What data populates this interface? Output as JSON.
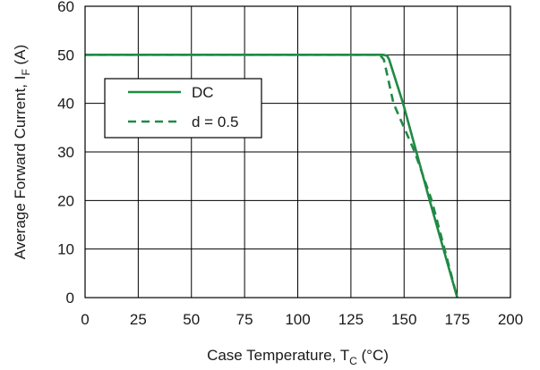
{
  "chart_data": {
    "type": "line",
    "title": "",
    "xlabel": {
      "main": "Case Temperature, T",
      "sub": "C",
      "unit": " (°C)"
    },
    "ylabel": {
      "main": "Average Forward Current, I",
      "sub": "F",
      "unit": " (A)"
    },
    "xlim": [
      0,
      200
    ],
    "ylim": [
      0,
      60
    ],
    "x_ticks": [
      "0",
      "25",
      "50",
      "75",
      "100",
      "125",
      "150",
      "175",
      "200"
    ],
    "y_ticks": [
      "0",
      "10",
      "20",
      "30",
      "40",
      "50",
      "60"
    ],
    "grid": true,
    "legend": {
      "placement": "top-left"
    },
    "series": [
      {
        "name": "DC",
        "line_style": "solid",
        "color": "#1f8a45",
        "points": [
          [
            0,
            50
          ],
          [
            140,
            50
          ],
          [
            142,
            49.8
          ],
          [
            143,
            49
          ],
          [
            149.5,
            40
          ],
          [
            162,
            20
          ],
          [
            175,
            0
          ]
        ]
      },
      {
        "name": "d = 0.5",
        "line_style": "dashed",
        "color": "#1f8a45",
        "points": [
          [
            0,
            50
          ],
          [
            137,
            50
          ],
          [
            139,
            49.8
          ],
          [
            140.5,
            49
          ],
          [
            145,
            40
          ],
          [
            155,
            30
          ],
          [
            163,
            20
          ],
          [
            169,
            10
          ],
          [
            175,
            0
          ]
        ]
      }
    ]
  }
}
